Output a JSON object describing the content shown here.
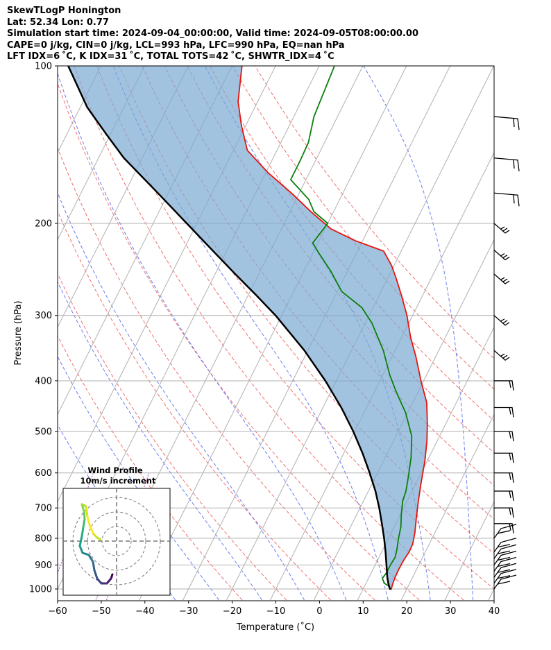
{
  "header": {
    "line1": "SkewTLogP Honington",
    "line2": "Lat: 52.34   Lon: 0.77",
    "line3": "Simulation start time: 2024-09-04_00:00:00, Valid time: 2024-09-05T08:00:00.00",
    "line4": "CAPE=0 j/kg, CIN=0 j/kg, LCL=993 hPa, LFC=990 hPa, EQ=nan hPa",
    "line5": "LFT IDX=6 ˚C, K IDX=31 ˚C, TOTAL TOTS=42 ˚C, SHWTR_IDX=4 ˚C"
  },
  "chart_data": {
    "type": "line",
    "subtype": "skew-t log-p",
    "xlabel": "Temperature (˚C)",
    "ylabel": "Pressure (hPa)",
    "xlim": [
      -60,
      40
    ],
    "ylim": [
      1050,
      100
    ],
    "x_ticks": [
      -60,
      -50,
      -40,
      -30,
      -20,
      -10,
      0,
      10,
      20,
      30,
      40
    ],
    "x_tick_labels": [
      "−60",
      "−50",
      "−40",
      "−30",
      "−20",
      "−10",
      "0",
      "10",
      "20",
      "30",
      "40"
    ],
    "y_ticks": [
      1000,
      900,
      800,
      700,
      600,
      500,
      400,
      300,
      200,
      100
    ],
    "y_tick_labels": [
      "1000",
      "900",
      "800",
      "700",
      "600",
      "500",
      "400",
      "300",
      "200",
      "100"
    ],
    "grid": true,
    "series": [
      {
        "name": "Temperature",
        "color": "#e8120c",
        "points": [
          [
            16.5,
            1003
          ],
          [
            16.2,
            980
          ],
          [
            16,
            950
          ],
          [
            15.9,
            920
          ],
          [
            16,
            880
          ],
          [
            16.3,
            850
          ],
          [
            16.2,
            820
          ],
          [
            15.4,
            780
          ],
          [
            14,
            730
          ],
          [
            12.6,
            680
          ],
          [
            11.2,
            630
          ],
          [
            9.5,
            570
          ],
          [
            7.6,
            520
          ],
          [
            5.6,
            480
          ],
          [
            3.2,
            440
          ],
          [
            -0.6,
            400
          ],
          [
            -4.5,
            360
          ],
          [
            -8,
            330
          ],
          [
            -11.3,
            300
          ],
          [
            -14.8,
            275
          ],
          [
            -18,
            255
          ],
          [
            -20.5,
            241
          ],
          [
            -24,
            226
          ],
          [
            -31.6,
            216
          ],
          [
            -38.6,
            205
          ],
          [
            -45.2,
            190
          ],
          [
            -51.8,
            175
          ],
          [
            -59.5,
            160
          ],
          [
            -66.8,
            145
          ],
          [
            -71,
            130
          ],
          [
            -74.5,
            117
          ],
          [
            -77.7,
            100
          ]
        ]
      },
      {
        "name": "Dewpoint",
        "color": "#0a7f0a",
        "points": [
          [
            16.2,
            1003
          ],
          [
            15.8,
            990
          ],
          [
            14.2,
            975
          ],
          [
            13.2,
            955
          ],
          [
            13.5,
            930
          ],
          [
            13.5,
            900
          ],
          [
            13.7,
            870
          ],
          [
            13.2,
            840
          ],
          [
            12.3,
            800
          ],
          [
            11.5,
            760
          ],
          [
            10.2,
            720
          ],
          [
            9,
            680
          ],
          [
            8.6,
            650
          ],
          [
            7.5,
            610
          ],
          [
            5.9,
            560
          ],
          [
            3.6,
            510
          ],
          [
            -0.5,
            460
          ],
          [
            -5,
            420
          ],
          [
            -8.4,
            390
          ],
          [
            -12.7,
            350
          ],
          [
            -18.5,
            310
          ],
          [
            -22.5,
            290
          ],
          [
            -29,
            270
          ],
          [
            -33.8,
            247
          ],
          [
            -38.9,
            227
          ],
          [
            -41.2,
            218
          ],
          [
            -40,
            200
          ],
          [
            -44.5,
            190
          ],
          [
            -47.1,
            180
          ],
          [
            -53.5,
            165
          ],
          [
            -53.5,
            152
          ],
          [
            -53.7,
            140
          ],
          [
            -55.4,
            125
          ],
          [
            -56.5,
            100
          ]
        ]
      },
      {
        "name": "Parcel profile",
        "color": "#000000",
        "points": [
          [
            16.3,
            1003
          ],
          [
            15.7,
            990
          ],
          [
            15.1,
            975
          ],
          [
            14.2,
            950
          ],
          [
            12.6,
            900
          ],
          [
            10.9,
            850
          ],
          [
            9,
            800
          ],
          [
            6.8,
            750
          ],
          [
            4.4,
            700
          ],
          [
            1.6,
            650
          ],
          [
            -1.8,
            600
          ],
          [
            -5.7,
            550
          ],
          [
            -10.3,
            500
          ],
          [
            -15.8,
            450
          ],
          [
            -22.5,
            400
          ],
          [
            -30.8,
            350
          ],
          [
            -41.4,
            300
          ],
          [
            -48,
            275
          ],
          [
            -55.4,
            250
          ],
          [
            -63.4,
            225
          ],
          [
            -72.3,
            200
          ],
          [
            -82.4,
            175
          ],
          [
            -94.2,
            150
          ],
          [
            -101,
            135
          ],
          [
            -108.4,
            120
          ],
          [
            -117.5,
            100
          ]
        ]
      }
    ],
    "wind_barbs_hpa": [
      1000,
      975,
      950,
      925,
      900,
      875,
      850,
      800,
      750,
      700,
      650,
      600,
      550,
      500,
      450,
      400,
      350,
      300,
      250,
      225,
      200,
      175,
      150,
      125
    ],
    "inset": {
      "title": "Wind Profile",
      "subtitle": "10m/s increment"
    }
  }
}
